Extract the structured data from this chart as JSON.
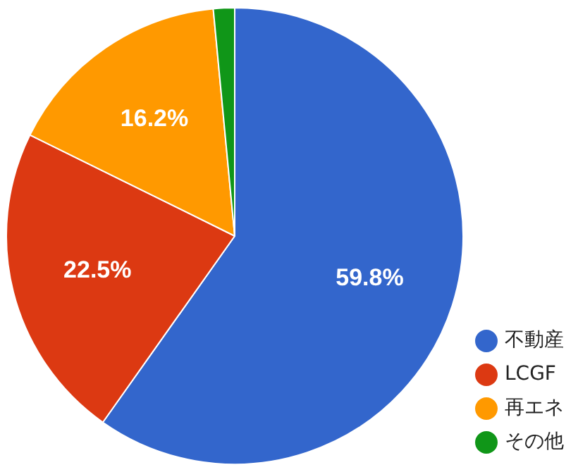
{
  "chart_data": {
    "type": "pie",
    "categories": [
      "不動産",
      "LCGF",
      "再エネ",
      "その他"
    ],
    "values": [
      59.8,
      22.5,
      16.2,
      1.5
    ],
    "colors": [
      "#3366cc",
      "#dc3912",
      "#ff9900",
      "#109618"
    ],
    "value_labels": [
      "59.8%",
      "22.5%",
      "16.2%",
      null
    ],
    "legend": "right"
  }
}
